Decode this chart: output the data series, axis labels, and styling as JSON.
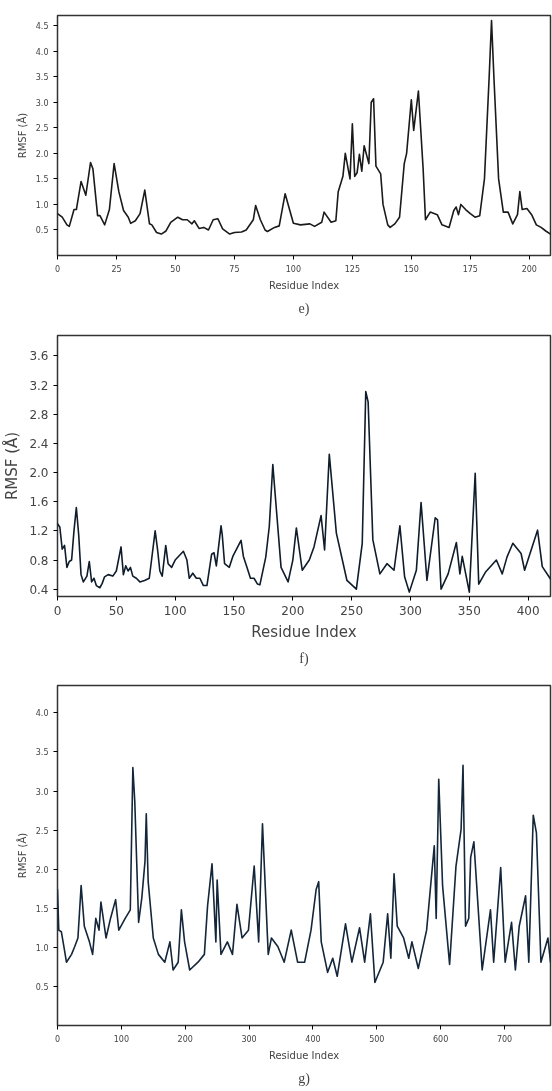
{
  "chart_data": [
    {
      "type": "line",
      "xlabel": "Residue Index",
      "ylabel": "RMSF (Å)",
      "annotations": [
        "e)"
      ],
      "color": "#1a1a1a",
      "xlim": [
        0,
        209
      ],
      "ylim": [
        0,
        4.7
      ],
      "xticks": [
        0,
        25,
        50,
        75,
        100,
        125,
        150,
        175,
        200
      ],
      "yticks": [
        0.5,
        {
          "value": 1.0,
          "label": "1.0"
        },
        1.5,
        {
          "value": 2.0,
          "label": "2.0"
        },
        2.5,
        {
          "value": 3.0,
          "label": "3.0"
        },
        3.5,
        {
          "value": 4.0,
          "label": "4.0"
        },
        4.5
      ],
      "x": [
        0,
        2,
        4,
        5,
        7,
        8,
        10,
        12,
        14,
        15,
        17,
        18,
        20,
        22,
        24,
        26,
        28,
        30,
        31,
        33,
        35,
        37,
        39,
        40,
        42,
        44,
        46,
        48,
        51,
        53,
        55,
        57,
        58,
        60,
        62,
        64,
        66,
        68,
        70,
        73,
        75,
        78,
        80,
        83,
        84,
        86,
        88,
        89,
        92,
        94,
        96.5,
        100,
        103,
        107,
        109,
        112,
        113,
        116,
        118,
        119,
        121,
        122,
        124,
        125,
        126,
        127,
        128,
        129,
        130,
        132,
        133,
        134,
        135,
        137,
        138,
        140,
        141,
        143,
        145,
        147,
        148,
        150,
        151,
        153,
        155,
        156,
        158,
        161,
        163,
        166,
        168,
        169,
        170,
        171,
        173,
        175,
        177,
        179,
        181,
        183,
        184,
        185,
        187,
        189,
        191,
        193,
        195,
        196,
        197,
        199,
        201,
        203,
        205,
        207,
        209
      ],
      "values": [
        0.82,
        0.75,
        0.6,
        0.57,
        0.9,
        0.9,
        1.45,
        1.18,
        1.82,
        1.7,
        0.78,
        0.78,
        0.6,
        0.9,
        1.8,
        1.25,
        0.88,
        0.75,
        0.63,
        0.68,
        0.82,
        1.28,
        0.62,
        0.6,
        0.45,
        0.42,
        0.48,
        0.65,
        0.75,
        0.7,
        0.7,
        0.62,
        0.68,
        0.53,
        0.55,
        0.5,
        0.7,
        0.72,
        0.52,
        0.42,
        0.45,
        0.46,
        0.5,
        0.7,
        0.98,
        0.7,
        0.5,
        0.47,
        0.55,
        0.58,
        1.21,
        0.63,
        0.6,
        0.62,
        0.57,
        0.65,
        0.85,
        0.65,
        0.68,
        1.25,
        1.55,
        2.0,
        1.5,
        2.58,
        1.55,
        1.62,
        1.98,
        1.65,
        2.15,
        1.8,
        3.0,
        3.07,
        1.75,
        1.6,
        1.0,
        0.6,
        0.55,
        0.62,
        0.75,
        1.8,
        2.0,
        3.05,
        2.45,
        3.22,
        1.7,
        0.7,
        0.85,
        0.8,
        0.6,
        0.55,
        0.88,
        0.95,
        0.8,
        1.0,
        0.9,
        0.82,
        0.75,
        0.78,
        1.5,
        3.5,
        4.6,
        3.5,
        1.5,
        0.85,
        0.85,
        0.62,
        0.8,
        1.25,
        0.9,
        0.92,
        0.8,
        0.6,
        0.55,
        0.48,
        0.42
      ]
    },
    {
      "type": "line",
      "xlabel": "Residue Index",
      "ylabel": "RMSF (Å)",
      "annotations": [
        "f)"
      ],
      "color": "#0f1c2b",
      "xlim": [
        0,
        419
      ],
      "ylim": [
        0.3,
        3.88
      ],
      "xticks": [
        0,
        50,
        100,
        150,
        200,
        250,
        300,
        350,
        400
      ],
      "yticks": [
        {
          "value": 0.4,
          "label": "0.4"
        },
        {
          "value": 0.8,
          "label": "0.8"
        },
        {
          "value": 1.2,
          "label": "1.2"
        },
        {
          "value": 1.6,
          "label": "1.6"
        },
        {
          "value": 2.0,
          "label": "2.0"
        },
        {
          "value": 2.4,
          "label": "2.4"
        },
        {
          "value": 2.8,
          "label": "2.8"
        },
        {
          "value": 3.2,
          "label": "3.2"
        },
        {
          "value": 3.6,
          "label": "3.6"
        }
      ],
      "x": [
        0,
        2,
        4,
        6,
        8,
        10,
        12,
        14,
        16,
        18,
        20,
        22,
        25,
        27,
        29,
        31,
        33,
        36,
        38,
        40,
        43,
        47,
        50,
        54,
        56,
        58,
        60,
        62,
        64,
        67,
        70,
        74,
        78,
        83,
        85,
        87,
        89,
        92,
        94,
        97,
        100,
        107,
        110,
        112,
        115,
        118,
        121,
        124,
        127,
        131,
        133,
        135,
        139,
        140,
        142,
        146,
        149,
        156,
        158,
        161,
        164,
        167,
        170,
        172,
        177,
        180,
        183,
        185,
        190,
        196,
        200,
        203,
        208,
        214,
        218,
        224,
        227,
        231,
        237,
        246,
        254,
        259,
        262,
        264,
        268,
        274,
        280,
        286,
        291,
        295,
        299,
        305,
        309,
        314,
        321,
        323,
        326,
        332,
        339,
        342,
        344,
        350,
        355,
        358,
        364,
        373,
        378,
        382,
        387,
        394,
        397,
        408,
        412,
        419
      ],
      "values": [
        1.3,
        1.25,
        0.95,
        1.0,
        0.7,
        0.78,
        0.8,
        1.2,
        1.52,
        1.15,
        0.6,
        0.5,
        0.58,
        0.78,
        0.5,
        0.55,
        0.45,
        0.42,
        0.48,
        0.57,
        0.6,
        0.58,
        0.65,
        0.98,
        0.6,
        0.72,
        0.65,
        0.7,
        0.58,
        0.55,
        0.5,
        0.52,
        0.55,
        1.2,
        0.95,
        0.65,
        0.58,
        1.0,
        0.75,
        0.7,
        0.8,
        0.92,
        0.8,
        0.55,
        0.62,
        0.55,
        0.55,
        0.45,
        0.45,
        0.88,
        0.9,
        0.72,
        1.27,
        1.15,
        0.75,
        0.7,
        0.85,
        1.07,
        0.85,
        0.7,
        0.55,
        0.55,
        0.47,
        0.46,
        0.84,
        1.26,
        2.11,
        1.7,
        0.7,
        0.5,
        0.8,
        1.24,
        0.66,
        0.8,
        0.98,
        1.41,
        0.94,
        2.25,
        1.17,
        0.52,
        0.4,
        1.03,
        3.11,
        2.97,
        1.08,
        0.61,
        0.75,
        0.66,
        1.27,
        0.57,
        0.36,
        0.66,
        1.59,
        0.52,
        1.38,
        1.35,
        0.4,
        0.61,
        1.04,
        0.61,
        0.85,
        0.36,
        1.99,
        0.47,
        0.64,
        0.8,
        0.61,
        0.84,
        1.03,
        0.89,
        0.66,
        1.21,
        0.71,
        0.54
      ]
    },
    {
      "type": "line",
      "xlabel": "Residue Index",
      "ylabel": "RMSF (Å)",
      "annotations": [
        "g)"
      ],
      "color": "#13263a",
      "xlim": [
        0,
        772
      ],
      "ylim": [
        0,
        4.35
      ],
      "xticks": [
        0,
        100,
        200,
        300,
        400,
        500,
        600,
        700
      ],
      "yticks": [
        0.5,
        {
          "value": 1.0,
          "label": "1.0"
        },
        1.5,
        {
          "value": 2.0,
          "label": "2.0"
        },
        2.5,
        {
          "value": 3.0,
          "label": "3.0"
        },
        3.5,
        {
          "value": 4.0,
          "label": "4.0"
        }
      ],
      "x": [
        0,
        2,
        6,
        11,
        14,
        22,
        27,
        32,
        37,
        42,
        50,
        55,
        60,
        65,
        68,
        76,
        83,
        91,
        96,
        106,
        114,
        118,
        121,
        127,
        132,
        137,
        139,
        142,
        150,
        158,
        168,
        176,
        181,
        189,
        194,
        199,
        207,
        220,
        230,
        235,
        242,
        248,
        250,
        256,
        266,
        274,
        281,
        289,
        299,
        308,
        315,
        321,
        330,
        335,
        345,
        355,
        366,
        376,
        387,
        397,
        405,
        409,
        413,
        423,
        431,
        438,
        451,
        461,
        473,
        481,
        490,
        497,
        510,
        517,
        522,
        527,
        532,
        542,
        550,
        555,
        565,
        578,
        590,
        593,
        597,
        603,
        614,
        624,
        632,
        635,
        639,
        644,
        647,
        652,
        665,
        678,
        683,
        694,
        701,
        711,
        717,
        723,
        733,
        738,
        745,
        750,
        757,
        768,
        772
      ],
      "values": [
        1.74,
        1.22,
        1.2,
        0.96,
        0.81,
        0.91,
        1.01,
        1.12,
        1.79,
        1.27,
        1.07,
        0.91,
        1.37,
        1.22,
        1.58,
        1.12,
        1.37,
        1.61,
        1.22,
        1.37,
        1.48,
        3.3,
        2.87,
        1.32,
        1.63,
        2.1,
        2.71,
        1.84,
        1.12,
        0.91,
        0.81,
        1.07,
        0.71,
        0.81,
        1.48,
        1.07,
        0.71,
        0.81,
        0.91,
        1.53,
        2.07,
        1.07,
        1.86,
        0.91,
        1.07,
        0.91,
        1.55,
        1.12,
        1.22,
        2.04,
        1.07,
        2.58,
        0.91,
        1.12,
        1.01,
        0.81,
        1.22,
        0.81,
        0.81,
        1.22,
        1.74,
        1.84,
        1.07,
        0.68,
        0.86,
        0.63,
        1.3,
        0.81,
        1.25,
        0.81,
        1.43,
        0.55,
        0.81,
        1.43,
        0.86,
        1.94,
        1.27,
        1.12,
        0.86,
        1.07,
        0.73,
        1.22,
        2.3,
        1.37,
        3.15,
        1.79,
        0.78,
        2.04,
        2.51,
        3.33,
        1.27,
        1.37,
        2.15,
        2.35,
        0.71,
        1.48,
        0.81,
        2.02,
        0.81,
        1.32,
        0.71,
        1.27,
        1.66,
        0.81,
        2.69,
        2.46,
        0.81,
        1.12,
        0.81
      ]
    }
  ]
}
